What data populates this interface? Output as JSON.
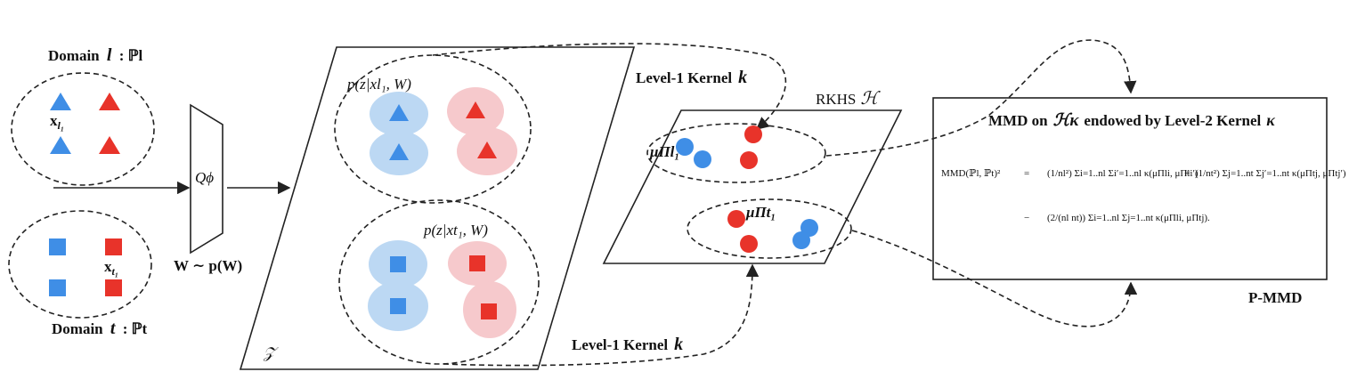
{
  "colors": {
    "blue": "#3f8ee6",
    "red": "#e8332a",
    "blue_soft": "#bcd8f3",
    "red_soft": "#f6c9cc",
    "line": "#222222"
  },
  "labels": {
    "domain_l": "Domain",
    "domain_l_sym": "l",
    "domain_l_dist": ": ℙl",
    "x_l1": "x",
    "x_l1_sub": "l₁",
    "domain_t": "Domain",
    "domain_t_sym": "t",
    "domain_t_dist": ": ℙt",
    "x_t1": "x",
    "x_t1_sub": "t₁",
    "encoder": "Qϕ",
    "weight_prior": "W ∼ p(W)",
    "latent_space": "𝒵",
    "post_l": "p(z|xl₁, W)",
    "post_t": "p(z|xt₁, W)",
    "kernel_top": "Level-1 Kernel",
    "kernel_top_sym": "k",
    "kernel_bottom": "Level-1 Kernel",
    "kernel_bottom_sym": "k",
    "rkhs": "RKHS",
    "rkhs_sym": "ℋ",
    "mu_l": "μΠl₁",
    "mu_t": "μΠt₁",
    "mmd_title_a": "MMD on",
    "mmd_title_sym": "ℋκ",
    "mmd_title_b": "endowed by Level-2 Kernel",
    "mmd_title_k": "κ",
    "eq_lhs": "MMD(ℙl, ℙt)²",
    "eq_eq": "=",
    "eq_term1": "(1/nl²) Σi=1..nl Σi′=1..nl κ(μΠli, μΠli′)",
    "eq_plus": "+",
    "eq_term2": "(1/nt²) Σj=1..nt Σj′=1..nt κ(μΠtj, μΠtj′)",
    "eq_minus": "−",
    "eq_term3": "(2/(nl nt)) Σi=1..nl Σj=1..nt κ(μΠli, μΠtj).",
    "pmmd": "P-MMD"
  }
}
